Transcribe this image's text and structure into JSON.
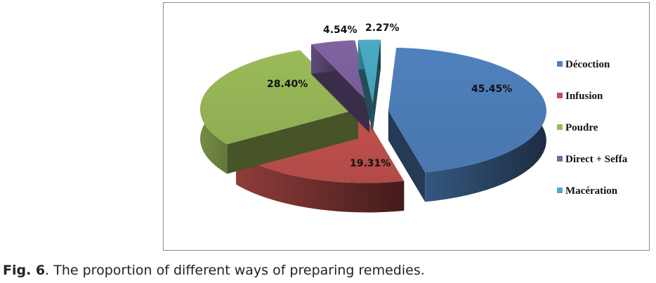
{
  "chart_data": {
    "type": "pie",
    "categories": [
      "Décoction",
      "Infusion",
      "Poudre",
      "Direct + Seffa",
      "Macération"
    ],
    "values": [
      45.45,
      19.31,
      28.4,
      4.54,
      2.27
    ],
    "data_labels": [
      "45.45%",
      "19.31%",
      "28.40%",
      "4.54%",
      "2.27%"
    ],
    "colors": [
      "#4f81bd",
      "#c0504d",
      "#9bbb59",
      "#8064a2",
      "#4bacc6"
    ],
    "style": "3d-exploded",
    "legend": "right"
  },
  "caption": {
    "label": "Fig. 6",
    "text": ". The proportion of different ways of preparing remedies."
  }
}
